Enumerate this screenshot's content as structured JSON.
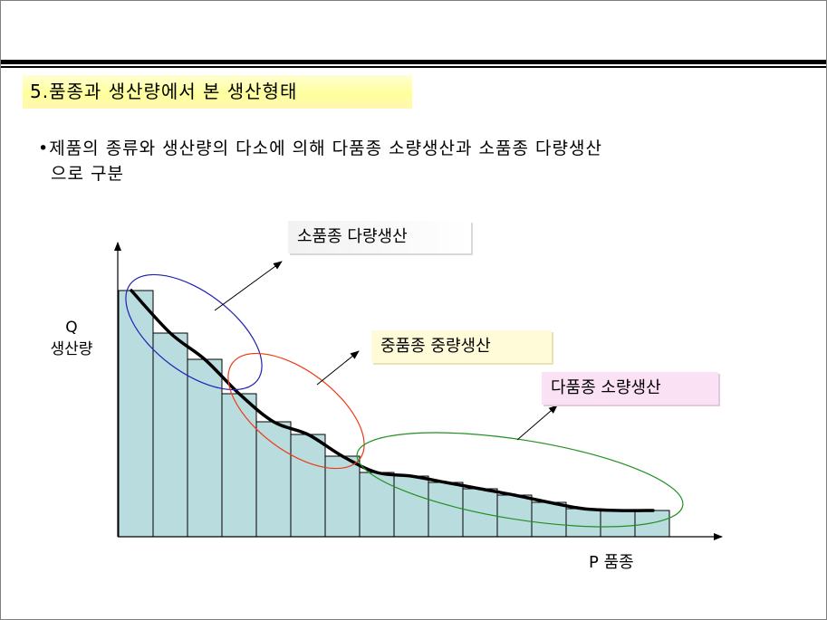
{
  "heading": "5.품종과 생산량에서 본 생산형태",
  "bullet": {
    "marker": "•",
    "line1": "제품의 종류와 생산량의 다소에 의해 다품종 소량생산과 소품종 다량생산",
    "line2": "으로 구분"
  },
  "axes": {
    "y_symbol": "Q",
    "y_label": "생산량",
    "x_label": "P 품종"
  },
  "labels": {
    "small_variety": "소품종 다량생산",
    "medium_variety": "중품종 중량생산",
    "many_variety": "다품종 소량생산"
  },
  "colors": {
    "bar_fill": "#b9dcdf",
    "ellipse_small": "#2121b5",
    "ellipse_medium": "#ef3a16",
    "ellipse_many": "#229022"
  },
  "chart_data": {
    "type": "bar",
    "values": [
      272,
      225,
      196,
      158,
      127,
      113,
      89,
      71,
      67,
      60,
      53,
      46,
      38,
      31,
      29,
      29
    ],
    "trend_line": true
  }
}
